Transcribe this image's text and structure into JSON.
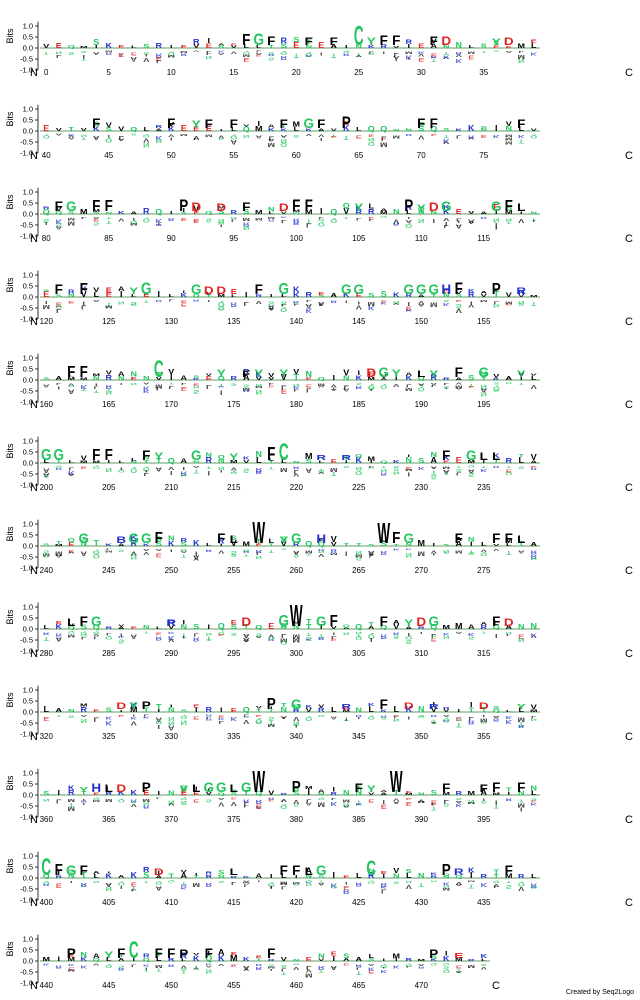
{
  "title": "",
  "credit": "Created by Seq2Logo",
  "axis": {
    "ylabel": "Bits",
    "start_label": "N",
    "end_label": "C",
    "yticks": [
      "1.0",
      "0.5",
      "0.0",
      "-0.5",
      "-1.0"
    ],
    "ylim": [
      -1.0,
      1.2
    ]
  },
  "colors": {
    "hydrophobic": "#000000",
    "polar": "#22c55e",
    "basic": "#2233cc",
    "acidic": "#dd2222",
    "neutral": "#7c3aed",
    "axis": "#000000",
    "baseline": "#2e7d32"
  },
  "chart_data": {
    "type": "sequence-logo",
    "rows": [
      {
        "start": 0,
        "ticks": [
          0,
          5,
          10,
          15,
          20,
          25,
          30,
          35
        ],
        "major": [
          [
            16,
            "F",
            0.5
          ],
          [
            17,
            "G",
            0.55
          ],
          [
            18,
            "F",
            0.4
          ],
          [
            21,
            "F",
            0.35
          ],
          [
            23,
            "F",
            0.35
          ],
          [
            25,
            "C",
            0.9
          ],
          [
            26,
            "Y",
            0.35
          ],
          [
            27,
            "F",
            0.45
          ],
          [
            28,
            "F",
            0.45
          ],
          [
            31,
            "F",
            0.4
          ],
          [
            32,
            "D",
            0.4
          ],
          [
            36,
            "Y",
            0.3
          ],
          [
            37,
            "D",
            0.35
          ]
        ]
      },
      {
        "start": 40,
        "ticks": [
          40,
          45,
          50,
          55,
          60,
          65,
          70,
          75
        ],
        "major": [
          [
            44,
            "F",
            0.45
          ],
          [
            50,
            "F",
            0.45
          ],
          [
            52,
            "Y",
            0.35
          ],
          [
            53,
            "F",
            0.4
          ],
          [
            55,
            "F",
            0.4
          ],
          [
            59,
            "F",
            0.4
          ],
          [
            61,
            "G",
            0.45
          ],
          [
            62,
            "F",
            0.4
          ],
          [
            64,
            "P",
            0.55
          ],
          [
            70,
            "F",
            0.45
          ],
          [
            71,
            "F",
            0.45
          ],
          [
            78,
            "F",
            0.4
          ]
        ]
      },
      {
        "start": 80,
        "ticks": [
          80,
          85,
          90,
          95,
          100,
          105,
          110,
          115
        ],
        "major": [
          [
            81,
            "F",
            0.45
          ],
          [
            82,
            "G",
            0.45
          ],
          [
            84,
            "F",
            0.5
          ],
          [
            85,
            "F",
            0.5
          ],
          [
            91,
            "P",
            0.55
          ],
          [
            92,
            "D",
            0.4
          ],
          [
            94,
            "D",
            0.35
          ],
          [
            96,
            "F",
            0.4
          ],
          [
            99,
            "D",
            0.35
          ],
          [
            100,
            "F",
            0.55
          ],
          [
            101,
            "F",
            0.55
          ],
          [
            105,
            "Y",
            0.35
          ],
          [
            109,
            "P",
            0.55
          ],
          [
            110,
            "Y",
            0.3
          ],
          [
            111,
            "D",
            0.4
          ],
          [
            112,
            "G",
            0.45
          ],
          [
            116,
            "G",
            0.45
          ],
          [
            117,
            "F",
            0.5
          ],
          [
            118,
            "L",
            0.35
          ]
        ]
      },
      {
        "start": 120,
        "ticks": [
          120,
          125,
          130,
          135,
          140,
          145,
          150,
          155
        ],
        "major": [
          [
            121,
            "F",
            0.45
          ],
          [
            123,
            "F",
            0.5
          ],
          [
            127,
            "Y",
            0.3
          ],
          [
            128,
            "G",
            0.55
          ],
          [
            132,
            "G",
            0.45
          ],
          [
            133,
            "D",
            0.35
          ],
          [
            134,
            "D",
            0.35
          ],
          [
            137,
            "F",
            0.45
          ],
          [
            139,
            "G",
            0.5
          ],
          [
            144,
            "G",
            0.45
          ],
          [
            145,
            "G",
            0.45
          ],
          [
            149,
            "G",
            0.45
          ],
          [
            150,
            "G",
            0.45
          ],
          [
            151,
            "G",
            0.45
          ],
          [
            152,
            "H",
            0.45
          ],
          [
            153,
            "F",
            0.55
          ],
          [
            156,
            "P",
            0.5
          ],
          [
            158,
            "R",
            0.3
          ]
        ]
      },
      {
        "start": 160,
        "ticks": [
          160,
          165,
          170,
          175,
          180,
          185,
          190,
          195
        ],
        "major": [
          [
            162,
            "F",
            0.5
          ],
          [
            163,
            "F",
            0.5
          ],
          [
            169,
            "C",
            0.8
          ],
          [
            174,
            "Y",
            0.35
          ],
          [
            176,
            "F",
            0.3
          ],
          [
            177,
            "Y",
            0.35
          ],
          [
            179,
            "Y",
            0.35
          ],
          [
            186,
            "D",
            0.4
          ],
          [
            187,
            "G",
            0.45
          ],
          [
            188,
            "Y",
            0.35
          ],
          [
            190,
            "L",
            0.3
          ],
          [
            191,
            "Y",
            0.3
          ],
          [
            193,
            "F",
            0.45
          ],
          [
            195,
            "G",
            0.45
          ],
          [
            198,
            "Y",
            0.3
          ]
        ]
      },
      {
        "start": 200,
        "ticks": [
          200,
          205,
          210,
          215,
          220,
          225,
          230,
          235
        ],
        "major": [
          [
            200,
            "G",
            0.5
          ],
          [
            201,
            "G",
            0.5
          ],
          [
            204,
            "F",
            0.5
          ],
          [
            205,
            "F",
            0.5
          ],
          [
            208,
            "F",
            0.45
          ],
          [
            209,
            "Y",
            0.35
          ],
          [
            212,
            "G",
            0.45
          ],
          [
            215,
            "Y",
            0.3
          ],
          [
            218,
            "F",
            0.6
          ],
          [
            219,
            "C",
            0.8
          ],
          [
            222,
            "R",
            0.25
          ],
          [
            224,
            "R",
            0.25
          ],
          [
            232,
            "F",
            0.45
          ],
          [
            234,
            "G",
            0.45
          ],
          [
            235,
            "L",
            0.35
          ],
          [
            236,
            "L",
            0.35
          ]
        ]
      },
      {
        "start": 240,
        "ticks": [
          240,
          245,
          250,
          255,
          260,
          265,
          270,
          275
        ],
        "major": [
          [
            243,
            "G",
            0.45
          ],
          [
            246,
            "B",
            0.3
          ],
          [
            247,
            "G",
            0.45
          ],
          [
            248,
            "G",
            0.45
          ],
          [
            249,
            "F",
            0.5
          ],
          [
            254,
            "F",
            0.45
          ],
          [
            255,
            "L",
            0.35
          ],
          [
            257,
            "W",
            1.0
          ],
          [
            259,
            "Y",
            0.3
          ],
          [
            260,
            "G",
            0.45
          ],
          [
            262,
            "H",
            0.4
          ],
          [
            267,
            "W",
            0.95
          ],
          [
            268,
            "F",
            0.5
          ],
          [
            269,
            "G",
            0.45
          ],
          [
            273,
            "F",
            0.45
          ],
          [
            276,
            "F",
            0.45
          ],
          [
            277,
            "F",
            0.45
          ],
          [
            278,
            "L",
            0.35
          ]
        ]
      },
      {
        "start": 280,
        "ticks": [
          280,
          285,
          290,
          295,
          300,
          305,
          310,
          315
        ],
        "major": [
          [
            282,
            "L",
            0.35
          ],
          [
            283,
            "F",
            0.45
          ],
          [
            284,
            "G",
            0.45
          ],
          [
            290,
            "R",
            0.3
          ],
          [
            296,
            "D",
            0.4
          ],
          [
            299,
            "G",
            0.5
          ],
          [
            300,
            "W",
            1.0
          ],
          [
            302,
            "G",
            0.45
          ],
          [
            303,
            "F",
            0.5
          ],
          [
            307,
            "F",
            0.45
          ],
          [
            309,
            "Y",
            0.3
          ],
          [
            310,
            "D",
            0.4
          ],
          [
            311,
            "G",
            0.45
          ],
          [
            316,
            "F",
            0.45
          ],
          [
            317,
            "D",
            0.35
          ]
        ]
      },
      {
        "start": 320,
        "ticks": [
          320,
          325,
          330,
          335,
          340,
          345,
          350,
          355
        ],
        "major": [
          [
            326,
            "D",
            0.3
          ],
          [
            327,
            "Y",
            0.3
          ],
          [
            328,
            "P",
            0.35
          ],
          [
            338,
            "P",
            0.5
          ],
          [
            340,
            "G",
            0.45
          ],
          [
            344,
            "R",
            0.25
          ],
          [
            347,
            "F",
            0.45
          ],
          [
            349,
            "D",
            0.3
          ],
          [
            351,
            "R",
            0.25
          ],
          [
            355,
            "D",
            0.3
          ],
          [
            358,
            "Y",
            0.25
          ],
          [
            360,
            "D",
            0.3
          ]
        ]
      },
      {
        "start": 360,
        "ticks": [
          360,
          365,
          370,
          375,
          380,
          385,
          390,
          395
        ],
        "major": [
          [
            363,
            "Y",
            0.25
          ],
          [
            364,
            "H",
            0.4
          ],
          [
            365,
            "L",
            0.35
          ],
          [
            366,
            "D",
            0.35
          ],
          [
            368,
            "P",
            0.45
          ],
          [
            371,
            "Y",
            0.3
          ],
          [
            372,
            "L",
            0.35
          ],
          [
            373,
            "G",
            0.45
          ],
          [
            374,
            "G",
            0.45
          ],
          [
            375,
            "L",
            0.35
          ],
          [
            376,
            "G",
            0.45
          ],
          [
            377,
            "W",
            1.0
          ],
          [
            380,
            "P",
            0.5
          ],
          [
            385,
            "F",
            0.4
          ],
          [
            386,
            "Y",
            0.3
          ],
          [
            388,
            "W",
            1.0
          ],
          [
            392,
            "F",
            0.4
          ],
          [
            395,
            "F",
            0.35
          ],
          [
            396,
            "F",
            0.45
          ],
          [
            398,
            "F",
            0.45
          ]
        ]
      },
      {
        "start": 400,
        "ticks": [
          400,
          405,
          410,
          415,
          420,
          425,
          430,
          435
        ],
        "major": [
          [
            400,
            "C",
            0.8
          ],
          [
            401,
            "F",
            0.5
          ],
          [
            402,
            "G",
            0.45
          ],
          [
            403,
            "F",
            0.45
          ],
          [
            409,
            "D",
            0.3
          ],
          [
            415,
            "L",
            0.3
          ],
          [
            419,
            "F",
            0.45
          ],
          [
            420,
            "F",
            0.45
          ],
          [
            421,
            "L",
            0.35
          ],
          [
            422,
            "G",
            0.45
          ],
          [
            426,
            "C",
            0.7
          ],
          [
            432,
            "P",
            0.5
          ],
          [
            433,
            "R",
            0.3
          ],
          [
            437,
            "F",
            0.45
          ]
        ]
      },
      {
        "start": 440,
        "ticks": [
          440,
          445,
          450,
          455,
          460,
          465,
          470
        ],
        "major": [
          [
            442,
            "P",
            0.45
          ],
          [
            445,
            "Y",
            0.3
          ],
          [
            446,
            "F",
            0.45
          ],
          [
            447,
            "C",
            0.8
          ],
          [
            449,
            "F",
            0.45
          ],
          [
            450,
            "F",
            0.45
          ],
          [
            451,
            "P",
            0.4
          ],
          [
            453,
            "F",
            0.45
          ],
          [
            458,
            "F",
            0.45
          ],
          [
            471,
            "P",
            0.4
          ],
          [
            473,
            "E",
            0.25
          ]
        ]
      }
    ]
  }
}
